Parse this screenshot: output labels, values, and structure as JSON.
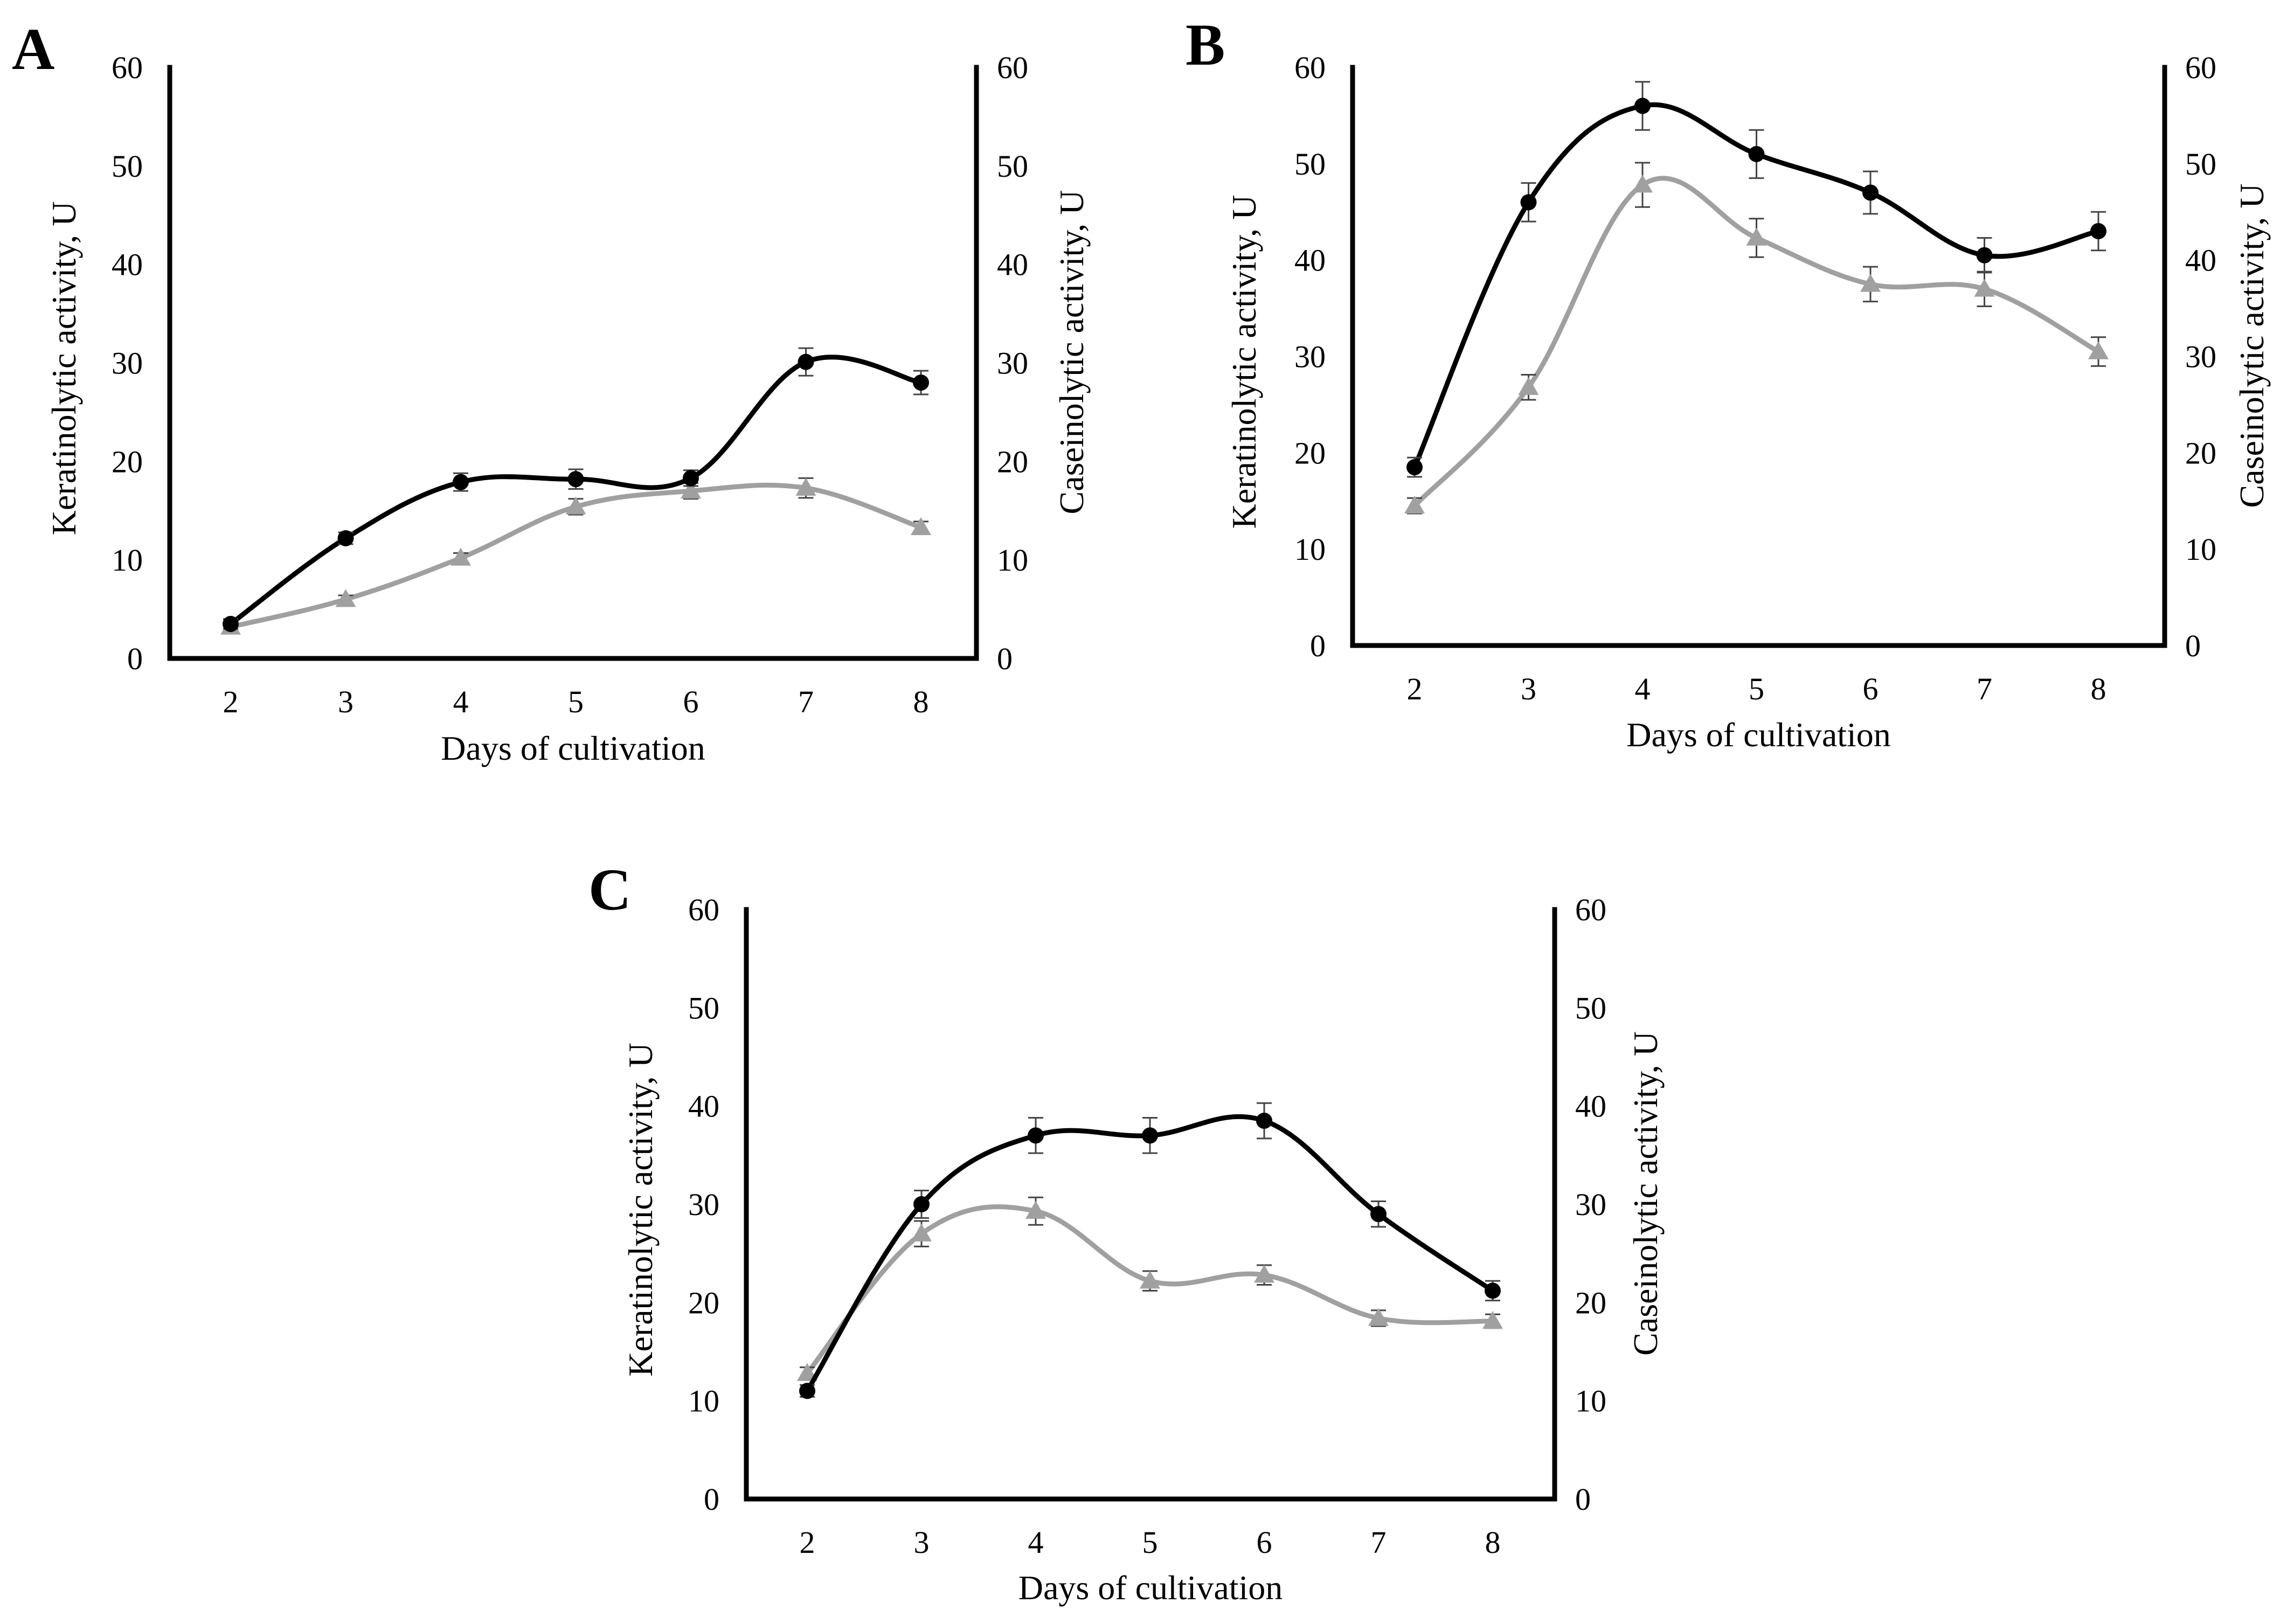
{
  "chart_data": [
    {
      "type": "line",
      "panel_label": "A",
      "title": "",
      "categories": [
        "2",
        "3",
        "4",
        "5",
        "6",
        "7",
        "8"
      ],
      "xlabel": "Days of cultivation",
      "ylabel_left": "Keratinolytic activity, U",
      "ylabel_right": "Caseinolytic activity, U",
      "ylim": [
        0,
        60
      ],
      "yticks": [
        "0",
        "10",
        "20",
        "30",
        "40",
        "50",
        "60"
      ],
      "grid": false,
      "series": [
        {
          "name": "Keratinolytic activity",
          "axis": "left",
          "color": "#000000",
          "marker": "circle",
          "values": [
            3.5,
            12.2,
            17.9,
            18.2,
            18.3,
            30.1,
            28.0
          ],
          "errors": [
            0.5,
            0.6,
            0.9,
            1.0,
            0.8,
            1.4,
            1.2
          ]
        },
        {
          "name": "Caseinolytic activity",
          "axis": "right",
          "color": "#a0a0a0",
          "marker": "triangle",
          "values": [
            3.2,
            6.0,
            10.2,
            15.4,
            17.0,
            17.3,
            13.3
          ],
          "errors": [
            0.3,
            0.4,
            0.5,
            0.8,
            0.8,
            1.0,
            0.6
          ]
        }
      ]
    },
    {
      "type": "line",
      "panel_label": "B",
      "title": "",
      "categories": [
        "2",
        "3",
        "4",
        "5",
        "6",
        "7",
        "8"
      ],
      "xlabel": "Days of cultivation",
      "ylabel_left": "Keratinolytic activity, U",
      "ylabel_right": "Caseinolytic activity, U",
      "ylim": [
        0,
        60
      ],
      "yticks": [
        "0",
        "10",
        "20",
        "30",
        "40",
        "50",
        "60"
      ],
      "grid": false,
      "series": [
        {
          "name": "Keratinolytic activity",
          "axis": "left",
          "color": "#000000",
          "marker": "circle",
          "values": [
            18.5,
            46.0,
            56.0,
            51.0,
            47.0,
            40.5,
            43.0
          ],
          "errors": [
            1.0,
            2.0,
            2.5,
            2.5,
            2.2,
            1.8,
            2.0
          ]
        },
        {
          "name": "Caseinolytic activity",
          "axis": "right",
          "color": "#a0a0a0",
          "marker": "triangle",
          "values": [
            14.5,
            26.8,
            47.8,
            42.3,
            37.5,
            37.0,
            30.5
          ],
          "errors": [
            0.8,
            1.3,
            2.3,
            2.0,
            1.8,
            1.8,
            1.5
          ]
        }
      ]
    },
    {
      "type": "line",
      "panel_label": "C",
      "title": "",
      "categories": [
        "2",
        "3",
        "4",
        "5",
        "6",
        "7",
        "8"
      ],
      "xlabel": "Days of cultivation",
      "ylabel_left": "Keratinolytic activity, U",
      "ylabel_right": "Caseinolytic activity, U",
      "ylim": [
        0,
        60
      ],
      "yticks": [
        "0",
        "10",
        "20",
        "30",
        "40",
        "50",
        "60"
      ],
      "grid": false,
      "series": [
        {
          "name": "Keratinolytic activity",
          "axis": "left",
          "color": "#000000",
          "marker": "circle",
          "values": [
            11.0,
            30.0,
            37.0,
            37.0,
            38.5,
            29.0,
            21.2
          ],
          "errors": [
            0.6,
            1.4,
            1.8,
            1.8,
            1.8,
            1.3,
            1.0
          ]
        },
        {
          "name": "Caseinolytic activity",
          "axis": "right",
          "color": "#a0a0a0",
          "marker": "triangle",
          "values": [
            12.8,
            27.0,
            29.3,
            22.2,
            22.8,
            18.4,
            18.1
          ],
          "errors": [
            0.6,
            1.3,
            1.4,
            1.0,
            1.0,
            0.8,
            0.7
          ]
        }
      ]
    }
  ]
}
